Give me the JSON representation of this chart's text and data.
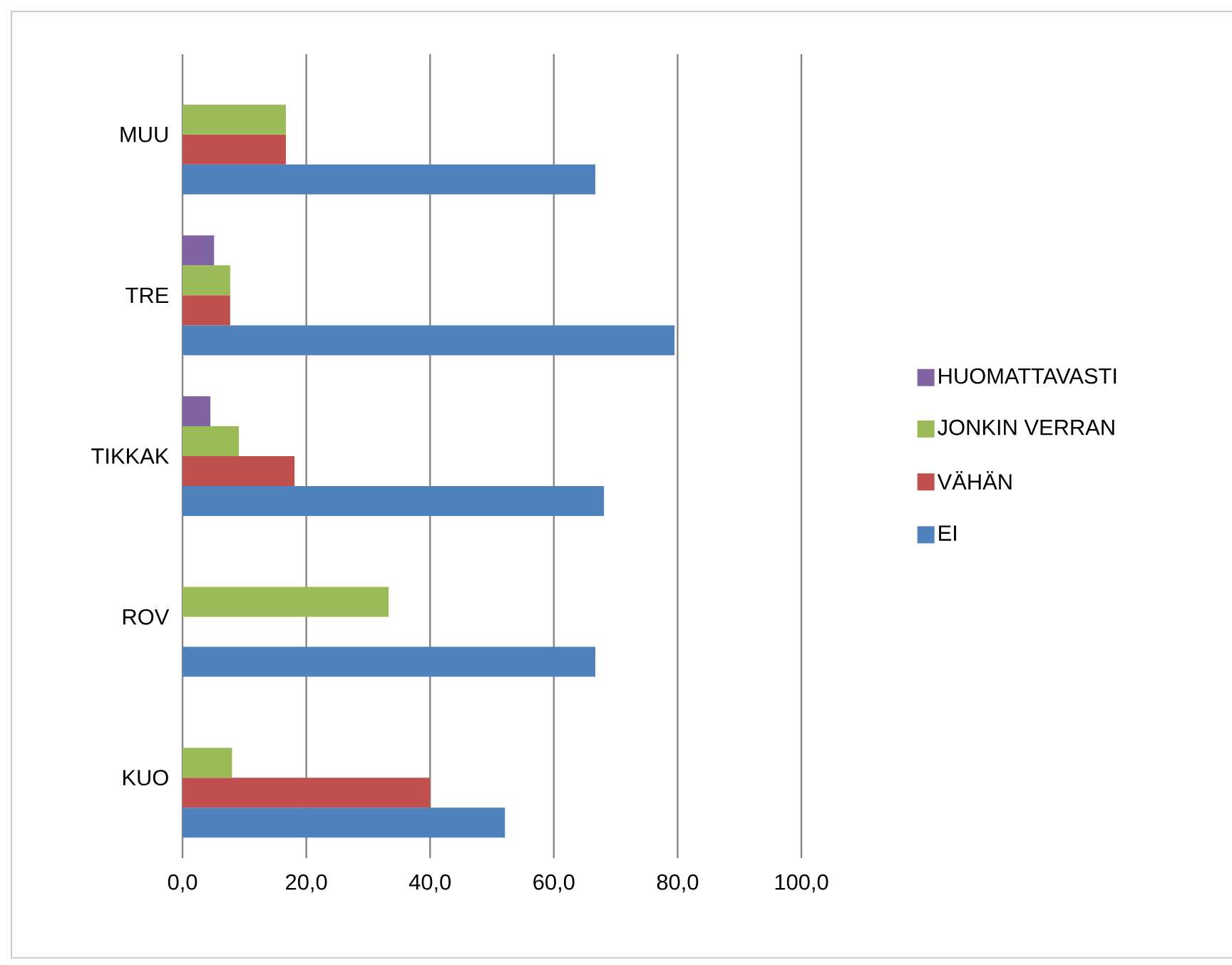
{
  "chart_data": {
    "type": "bar",
    "orientation": "horizontal",
    "categories": [
      "MUU",
      "TRE",
      "TIKKAK",
      "ROV",
      "KUO"
    ],
    "series": [
      {
        "name": "EI",
        "color": "#4f81bd",
        "values": [
          66.7,
          79.5,
          68.1,
          66.7,
          52.1
        ]
      },
      {
        "name": "VÄHÄN",
        "color": "#c0504d",
        "values": [
          16.7,
          7.7,
          18.1,
          null,
          40.0
        ]
      },
      {
        "name": "JONKIN VERRAN",
        "color": "#9bbb59",
        "values": [
          16.7,
          7.7,
          9.1,
          33.3,
          8.0
        ]
      },
      {
        "name": "HUOMATTAVASTI",
        "color": "#8064a2",
        "values": [
          null,
          5.1,
          4.5,
          null,
          null
        ]
      }
    ],
    "xlim": [
      0,
      100
    ],
    "xticks": [
      {
        "value": 0,
        "label": "0,0"
      },
      {
        "value": 20,
        "label": "20,0"
      },
      {
        "value": 40,
        "label": "40,0"
      },
      {
        "value": 60,
        "label": "60,0"
      },
      {
        "value": 80,
        "label": "80,0"
      },
      {
        "value": 100,
        "label": "100,0"
      }
    ],
    "grid": "x",
    "legend": "right"
  }
}
